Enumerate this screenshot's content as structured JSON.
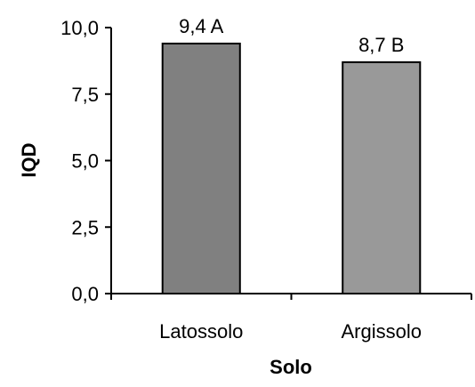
{
  "chart_data": {
    "type": "bar",
    "categories": [
      "Latossolo",
      "Argissolo"
    ],
    "values": [
      9.4,
      8.7
    ],
    "data_labels": [
      "9,4",
      "8,7"
    ],
    "significance_letters": [
      "A",
      "B"
    ],
    "bar_colors": [
      "#808080",
      "#999999"
    ],
    "xlabel": "Solo",
    "ylabel": "IQD",
    "ylim": [
      0,
      10
    ],
    "yticks": [
      0,
      2.5,
      5,
      7.5,
      10
    ],
    "ytick_labels": [
      "0,0",
      "2,5",
      "5,0",
      "7,5",
      "10,0"
    ],
    "grid": false,
    "legend": "none"
  }
}
